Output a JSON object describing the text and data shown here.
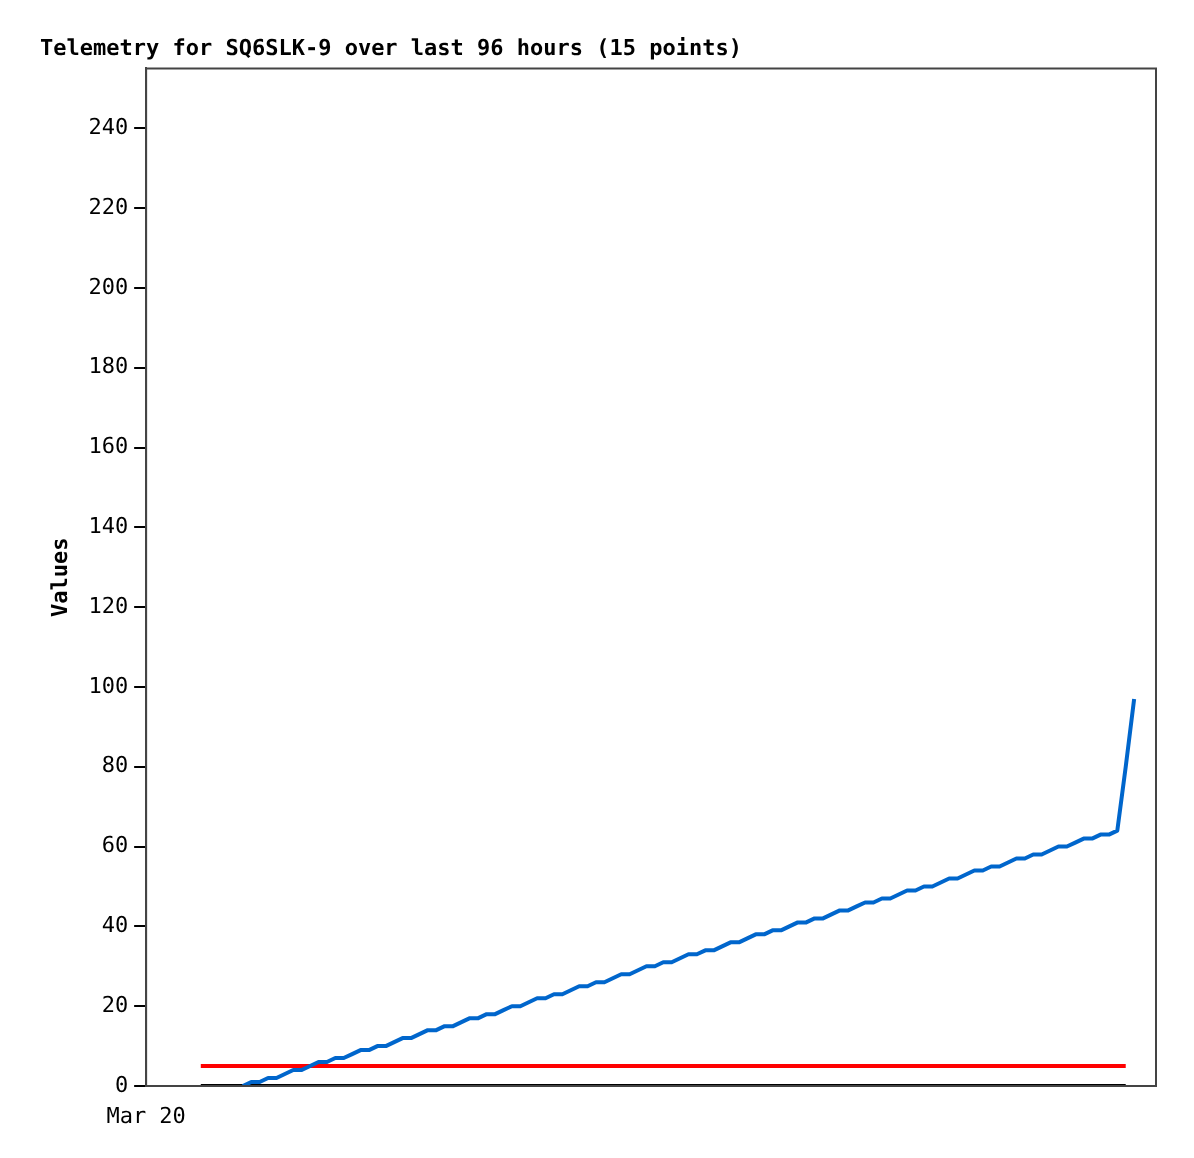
{
  "chart_data": {
    "type": "line",
    "title": "Telemetry for SQ6SLK-9 over last 96 hours (15 points)",
    "ylabel": "Values",
    "categories": [
      null,
      null,
      null,
      null,
      null,
      null,
      null,
      null,
      null,
      null,
      null,
      null,
      null,
      null,
      null,
      null,
      null,
      null,
      null,
      null,
      null,
      null,
      null,
      null,
      null,
      null,
      null,
      null,
      null,
      null,
      null,
      null,
      null,
      null,
      null,
      null,
      null,
      null,
      null,
      null,
      null,
      null,
      null,
      null,
      null,
      null,
      null,
      null,
      null,
      null,
      null,
      null,
      null,
      null,
      null,
      null,
      null,
      null,
      null,
      null,
      null,
      null,
      null,
      null,
      null,
      null,
      null,
      null,
      null,
      null,
      null,
      null,
      null,
      null,
      null,
      null,
      null,
      null,
      null,
      null,
      null,
      null,
      null,
      null,
      null,
      null,
      null,
      null,
      null,
      null,
      null,
      null,
      null,
      null,
      null,
      null,
      null,
      null,
      null,
      null,
      null,
      null,
      null,
      null,
      null,
      null,
      null,
      null,
      null,
      null,
      null,
      null
    ],
    "tick_labels": "y",
    "annotations": [
      "Mar 20"
    ],
    "ylim": [
      0,
      255
    ],
    "yticks": [
      0,
      20,
      40,
      60,
      80,
      100,
      120,
      140,
      160,
      180,
      200,
      220,
      240
    ],
    "grid": false,
    "legend": false,
    "marker": "none",
    "line_style": "solid",
    "series": [
      {
        "color": "#0066cc",
        "values": [
          null,
          null,
          null,
          null,
          null,
          0,
          1,
          1,
          2,
          2,
          3,
          4,
          4,
          5,
          6,
          6,
          7,
          7,
          8,
          9,
          9,
          10,
          10,
          11,
          12,
          12,
          13,
          14,
          14,
          15,
          15,
          16,
          17,
          17,
          18,
          18,
          19,
          20,
          20,
          21,
          22,
          22,
          23,
          23,
          24,
          25,
          25,
          26,
          26,
          27,
          28,
          28,
          29,
          30,
          30,
          31,
          31,
          32,
          33,
          33,
          34,
          34,
          35,
          36,
          36,
          37,
          38,
          38,
          39,
          39,
          40,
          41,
          41,
          42,
          42,
          43,
          44,
          44,
          45,
          46,
          46,
          47,
          47,
          48,
          49,
          49,
          50,
          50,
          51,
          52,
          52,
          53,
          54,
          54,
          55,
          55,
          56,
          57,
          57,
          58,
          58,
          59,
          60,
          60,
          61,
          62,
          62,
          63,
          63,
          64,
          80,
          97
        ]
      },
      {
        "color": "#ff0000",
        "values": [
          5,
          5,
          5,
          5,
          5,
          5,
          5,
          5,
          5,
          5,
          5,
          5,
          5,
          5,
          5,
          5,
          5,
          5,
          5,
          5,
          5,
          5,
          5,
          5,
          5,
          5,
          5,
          5,
          5,
          5,
          5,
          5,
          5,
          5,
          5,
          5,
          5,
          5,
          5,
          5,
          5,
          5,
          5,
          5,
          5,
          5,
          5,
          5,
          5,
          5,
          5,
          5,
          5,
          5,
          5,
          5,
          5,
          5,
          5,
          5,
          5,
          5,
          5,
          5,
          5,
          5,
          5,
          5,
          5,
          5,
          5,
          5,
          5,
          5,
          5,
          5,
          5,
          5,
          5,
          5,
          5,
          5,
          5,
          5,
          5,
          5,
          5,
          5,
          5,
          5,
          5,
          5,
          5,
          5,
          5,
          5,
          5,
          5,
          5,
          5,
          5,
          5,
          5,
          5,
          5,
          5,
          5,
          5,
          5,
          5,
          5,
          null
        ]
      },
      {
        "color": "#000000",
        "values": [
          0,
          0,
          0,
          0,
          0,
          0,
          0,
          0,
          0,
          0,
          0,
          0,
          0,
          0,
          0,
          0,
          0,
          0,
          0,
          0,
          0,
          0,
          0,
          0,
          0,
          0,
          0,
          0,
          0,
          0,
          0,
          0,
          0,
          0,
          0,
          0,
          0,
          0,
          0,
          0,
          0,
          0,
          0,
          0,
          0,
          0,
          0,
          0,
          0,
          0,
          0,
          0,
          0,
          0,
          0,
          0,
          0,
          0,
          0,
          0,
          0,
          0,
          0,
          0,
          0,
          0,
          0,
          0,
          0,
          0,
          0,
          0,
          0,
          0,
          0,
          0,
          0,
          0,
          0,
          0,
          0,
          0,
          0,
          0,
          0,
          0,
          0,
          0,
          0,
          0,
          0,
          0,
          0,
          0,
          0,
          0,
          0,
          0,
          0,
          0,
          0,
          0,
          0,
          0,
          0,
          0,
          0,
          0,
          0,
          0,
          0,
          null
        ]
      }
    ]
  }
}
